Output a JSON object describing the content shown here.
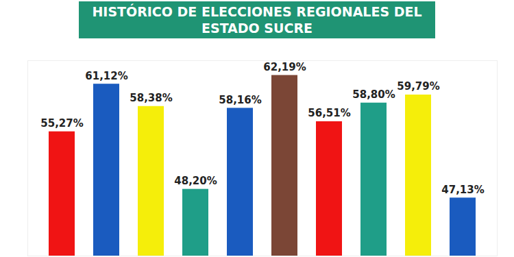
{
  "chart_data": {
    "type": "bar",
    "title": "HISTÓRICO DE ELECCIONES REGIONALES DEL ESTADO SUCRE",
    "categories": [
      null,
      null,
      null,
      null,
      null,
      null,
      null,
      null,
      null,
      null
    ],
    "values": [
      55.27,
      61.12,
      58.38,
      48.2,
      58.16,
      62.19,
      56.51,
      58.8,
      59.79,
      47.13
    ],
    "value_labels": [
      "55,27%",
      "61,12%",
      "58,38%",
      "48,20%",
      "58,16%",
      "62,19%",
      "56,51%",
      "58,80%",
      "59,79%",
      "47,13%"
    ],
    "colors": [
      "#f01414",
      "#1a5bbf",
      "#f5ee0a",
      "#1f9e88",
      "#1a5bbf",
      "#7b4636",
      "#f01414",
      "#1f9e88",
      "#f5ee0a",
      "#1a5bbf"
    ],
    "ylim": [
      40,
      64
    ],
    "yticks": [],
    "grid": false,
    "data_labels": true,
    "tick_labels": false
  }
}
